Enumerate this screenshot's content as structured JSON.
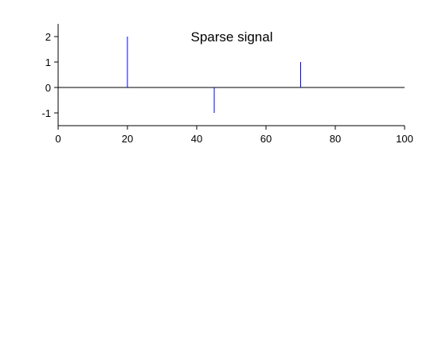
{
  "chart_data": {
    "type": "stem",
    "title": "Sparse signal",
    "xlabel": "",
    "ylabel": "",
    "xlim": [
      0,
      100
    ],
    "ylim": [
      -1.5,
      2.5
    ],
    "x_ticks": [
      0,
      20,
      40,
      60,
      80,
      100
    ],
    "y_ticks": [
      -1,
      0,
      1,
      2
    ],
    "grid": false,
    "legend": "none",
    "series": [
      {
        "color": "#0000ff",
        "points": [
          {
            "x": 20,
            "y": 2
          },
          {
            "x": 45,
            "y": -1
          },
          {
            "x": 70,
            "y": 1
          }
        ]
      }
    ],
    "baseline": {
      "y": 0,
      "color": "#000000"
    }
  }
}
